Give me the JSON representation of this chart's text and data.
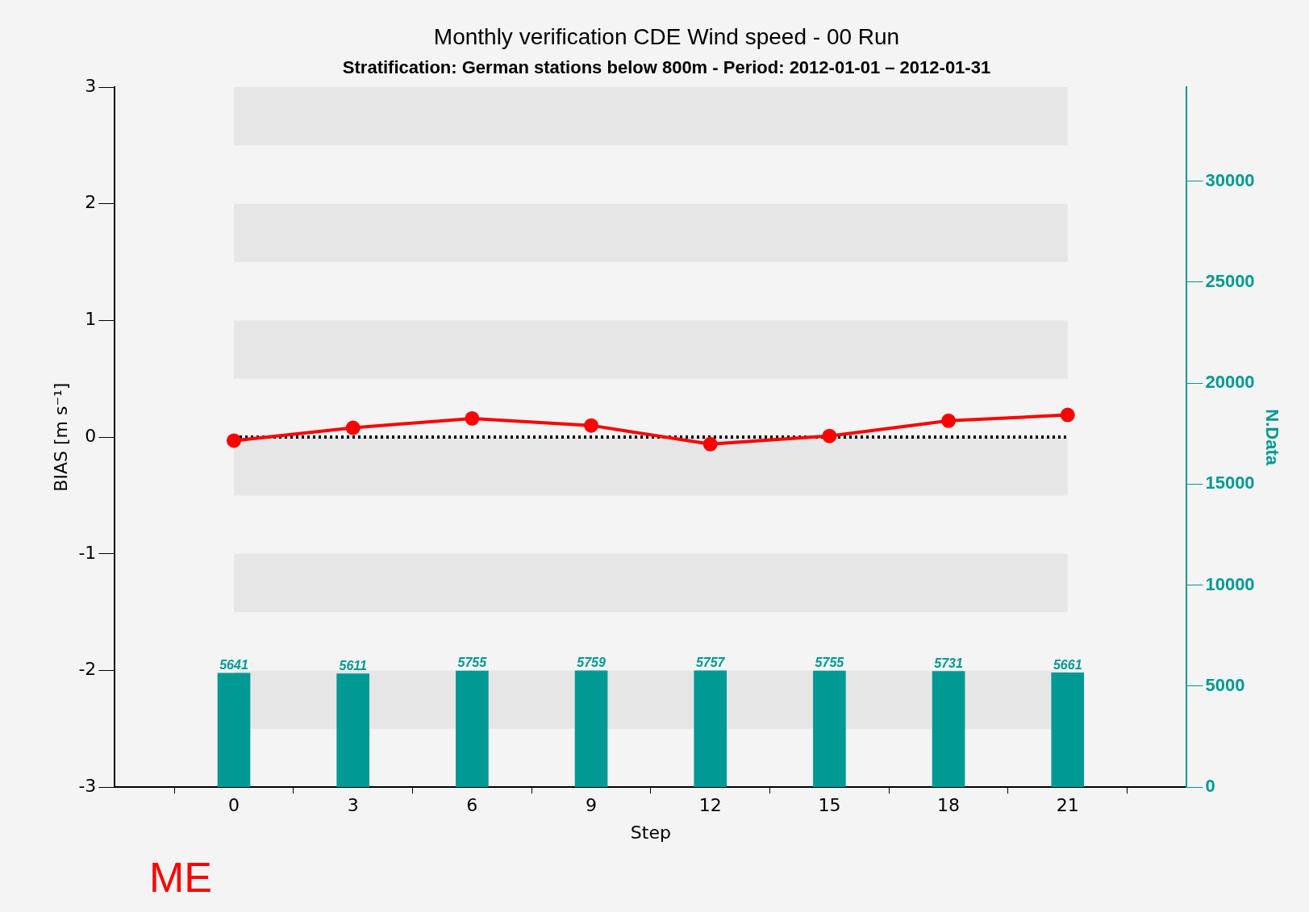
{
  "chart_data": {
    "type": "line",
    "title": "Monthly verification CDE Wind speed - 00 Run",
    "subtitle": "Stratification: German stations below 800m - Period: 2012-01-01 – 2012-01-31",
    "xlabel": "Step",
    "ylabel": "BIAS [m s⁻¹]",
    "y2label": "N.Data",
    "annotations": [
      "ME"
    ],
    "x": [
      0,
      3,
      6,
      9,
      12,
      15,
      18,
      21
    ],
    "xlim": [
      -3,
      24
    ],
    "xticks": [
      0,
      3,
      6,
      9,
      12,
      15,
      18,
      21
    ],
    "ylim": [
      -3,
      3
    ],
    "yticks": [
      -3,
      -2,
      -1,
      0,
      1,
      2,
      3
    ],
    "y2lim": [
      0,
      34650
    ],
    "y2ticks": [
      0,
      5000,
      10000,
      15000,
      20000,
      25000,
      30000
    ],
    "series": [
      {
        "type": "bar",
        "axis": "y2",
        "color": "#009994",
        "values": [
          5641,
          5611,
          5755,
          5759,
          5757,
          5755,
          5731,
          5661
        ],
        "value_labels": [
          "5641",
          "5611",
          "5755",
          "5759",
          "5757",
          "5755",
          "5731",
          "5661"
        ]
      },
      {
        "color": "#ff0000",
        "values": [
          -0.03,
          0.08,
          0.16,
          0.1,
          -0.06,
          0.01,
          0.14,
          0.19
        ]
      }
    ],
    "bands": [
      {
        "axis": "y",
        "from": 2.5,
        "to": 3,
        "color": "#e6e6e6"
      },
      {
        "axis": "y",
        "from": 1.5,
        "to": 2,
        "color": "#e6e6e6"
      },
      {
        "axis": "y",
        "from": 0.5,
        "to": 1,
        "color": "#e6e6e6"
      },
      {
        "axis": "y",
        "from": -0.5,
        "to": 0,
        "color": "#e6e6e6"
      },
      {
        "axis": "y",
        "from": -1.5,
        "to": -1,
        "color": "#e6e6e6"
      },
      {
        "axis": "y",
        "from": -2.5,
        "to": -2,
        "color": "#e6e6e6"
      }
    ],
    "ref_lines": [
      {
        "axis": "y",
        "value": 0,
        "color": "#000000",
        "line_style": "dotted"
      }
    ],
    "grid": false,
    "legend": false,
    "marker": "circle"
  }
}
